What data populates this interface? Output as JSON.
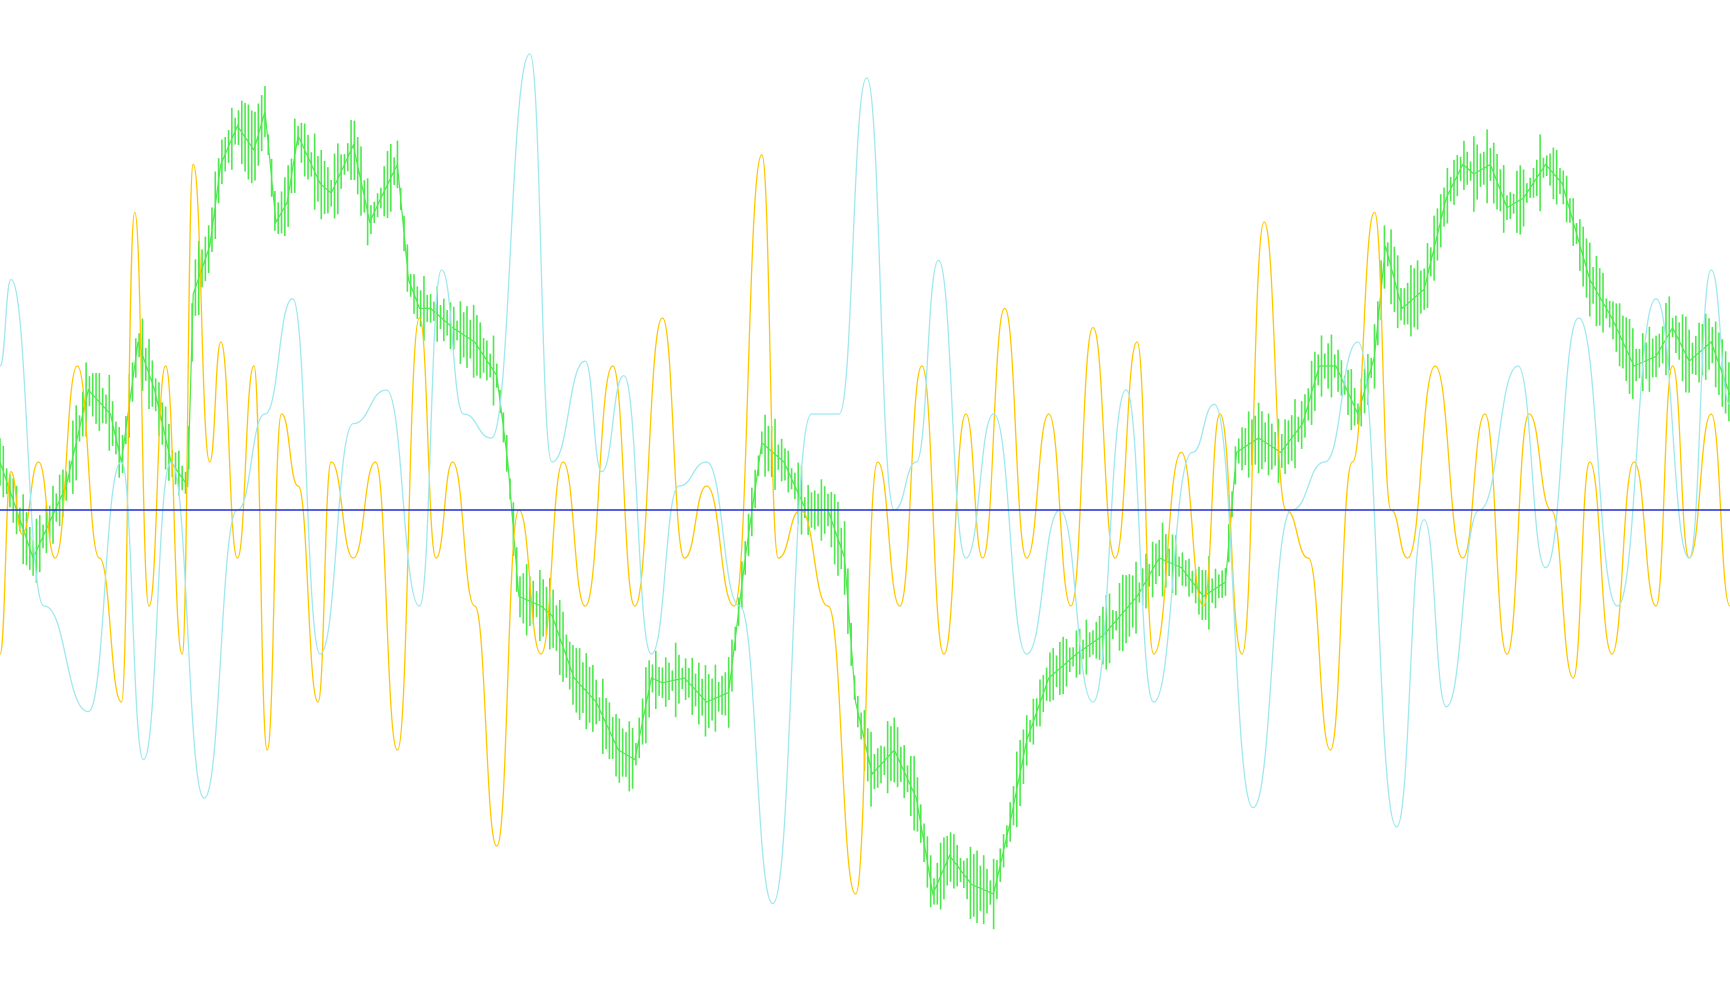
{
  "chart_data": {
    "type": "line",
    "title": "",
    "xlabel": "",
    "ylabel": "",
    "grid": false,
    "legend": "none",
    "xlim": [
      0,
      1567
    ],
    "ylim": [
      -1,
      1
    ],
    "baseline": {
      "value": 0,
      "color": "#1f2bd6"
    },
    "series": [
      {
        "color": "#4ce84c",
        "style": "bars",
        "x": [
          0,
          30,
          60,
          80,
          100,
          110,
          125,
          140,
          155,
          170,
          175,
          190,
          200,
          215,
          230,
          240,
          250,
          260,
          270,
          290,
          300,
          320,
          335,
          345,
          360,
          370,
          380,
          390,
          410,
          430,
          450,
          460,
          470,
          490,
          500,
          520,
          540,
          560,
          575,
          590,
          600,
          620,
          640,
          660,
          675,
          690,
          710,
          730,
          750,
          765,
          775,
          790,
          810,
          830,
          845,
          860,
          880,
          900,
          915,
          930,
          950,
          975,
          1000,
          1030,
          1050,
          1070,
          1090,
          1110,
          1120,
          1140,
          1160,
          1180,
          1195,
          1210,
          1230,
          1245,
          1255,
          1270,
          1290,
          1310,
          1325,
          1335,
          1350,
          1365,
          1380,
          1400,
          1415,
          1425,
          1440,
          1460,
          1480,
          1500,
          1515,
          1530,
          1550,
          1567
        ],
        "y": [
          0.1,
          -0.1,
          0.05,
          0.25,
          0.2,
          0.1,
          0.35,
          0.25,
          0.1,
          0.05,
          0.45,
          0.55,
          0.72,
          0.8,
          0.75,
          0.83,
          0.6,
          0.64,
          0.78,
          0.68,
          0.66,
          0.76,
          0.6,
          0.65,
          0.72,
          0.48,
          0.42,
          0.42,
          0.38,
          0.35,
          0.28,
          0.1,
          -0.18,
          -0.2,
          -0.22,
          -0.35,
          -0.4,
          -0.5,
          -0.52,
          -0.35,
          -0.36,
          -0.35,
          -0.4,
          -0.38,
          -0.1,
          0.14,
          0.1,
          0.0,
          0.0,
          -0.1,
          -0.4,
          -0.55,
          -0.5,
          -0.6,
          -0.8,
          -0.72,
          -0.78,
          -0.8,
          -0.65,
          -0.48,
          -0.35,
          -0.3,
          -0.26,
          -0.18,
          -0.1,
          -0.12,
          -0.18,
          -0.15,
          0.12,
          0.15,
          0.12,
          0.18,
          0.3,
          0.3,
          0.2,
          0.32,
          0.55,
          0.42,
          0.46,
          0.65,
          0.72,
          0.7,
          0.72,
          0.63,
          0.65,
          0.72,
          0.68,
          0.6,
          0.48,
          0.4,
          0.3,
          0.32,
          0.38,
          0.31,
          0.35,
          0.24
        ]
      },
      {
        "color": "#ffc700",
        "style": "line",
        "x": [
          0,
          10,
          20,
          35,
          50,
          70,
          90,
          110,
          122,
          135,
          150,
          165,
          175,
          190,
          200,
          215,
          230,
          242,
          255,
          270,
          288,
          300,
          320,
          340,
          360,
          380,
          395,
          410,
          430,
          450,
          470,
          490,
          510,
          530,
          555,
          575,
          600,
          620,
          640,
          665,
          690,
          705,
          725,
          750,
          775,
          795,
          815,
          835,
          855,
          875,
          890,
          910,
          930,
          950,
          970,
          990,
          1010,
          1030,
          1045,
          1070,
          1090,
          1105,
          1125,
          1145,
          1165,
          1185,
          1205,
          1225,
          1245,
          1260,
          1275,
          1300,
          1325,
          1345,
          1365,
          1385,
          1405,
          1425,
          1440,
          1460,
          1480,
          1500,
          1515,
          1530,
          1550,
          1567
        ],
        "y": [
          -0.3,
          0.08,
          -0.05,
          0.1,
          -0.1,
          0.3,
          -0.1,
          -0.4,
          0.62,
          -0.2,
          0.3,
          -0.3,
          0.72,
          0.1,
          0.35,
          -0.1,
          0.3,
          -0.5,
          0.2,
          0.05,
          -0.4,
          0.1,
          -0.1,
          0.1,
          -0.5,
          0.4,
          -0.1,
          0.1,
          -0.2,
          -0.7,
          0.0,
          -0.3,
          0.1,
          -0.2,
          0.3,
          -0.2,
          0.4,
          -0.1,
          0.05,
          -0.2,
          0.74,
          -0.1,
          0.0,
          -0.2,
          -0.8,
          0.1,
          -0.2,
          0.3,
          -0.3,
          0.2,
          -0.1,
          0.42,
          -0.1,
          0.2,
          -0.2,
          0.38,
          -0.1,
          0.35,
          -0.3,
          0.12,
          -0.2,
          0.2,
          -0.3,
          0.6,
          0.0,
          -0.1,
          -0.5,
          0.1,
          0.62,
          0.0,
          -0.1,
          0.3,
          -0.1,
          0.2,
          -0.3,
          0.2,
          0.0,
          -0.35,
          0.1,
          -0.3,
          0.1,
          -0.2,
          0.3,
          -0.1,
          0.2,
          -0.2
        ]
      },
      {
        "color": "#9fe8ee",
        "style": "line",
        "x": [
          0,
          10,
          40,
          80,
          110,
          130,
          155,
          185,
          215,
          240,
          265,
          290,
          320,
          350,
          380,
          400,
          420,
          445,
          480,
          500,
          530,
          545,
          565,
          590,
          615,
          640,
          670,
          700,
          735,
          760,
          785,
          810,
          830,
          850,
          875,
          900,
          930,
          960,
          990,
          1020,
          1045,
          1080,
          1100,
          1135,
          1170,
          1200,
          1230,
          1265,
          1290,
          1310,
          1340,
          1375,
          1400,
          1430,
          1465,
          1500,
          1530,
          1550,
          1567
        ],
        "y": [
          0.3,
          0.48,
          -0.2,
          -0.42,
          0.1,
          -0.52,
          0.1,
          -0.6,
          0.0,
          0.2,
          0.44,
          -0.3,
          0.18,
          0.25,
          -0.2,
          0.5,
          0.2,
          0.15,
          0.95,
          0.1,
          0.31,
          0.08,
          0.28,
          -0.3,
          0.05,
          0.1,
          -0.2,
          -0.82,
          0.2,
          0.2,
          0.9,
          0.0,
          0.1,
          0.52,
          -0.1,
          0.2,
          -0.3,
          0.0,
          -0.4,
          0.25,
          -0.4,
          0.12,
          0.22,
          -0.62,
          0.0,
          0.1,
          0.35,
          -0.66,
          -0.02,
          -0.41,
          0.0,
          0.3,
          -0.12,
          0.4,
          -0.2,
          0.44,
          -0.1,
          0.5,
          0.22
        ]
      }
    ]
  }
}
